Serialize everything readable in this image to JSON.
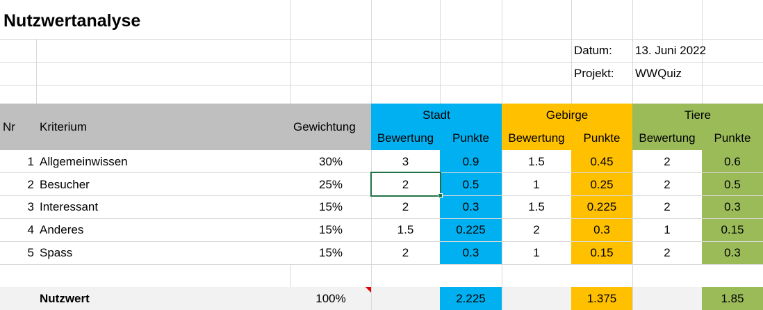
{
  "title": "Nutzwertanalyse",
  "meta": {
    "date_label": "Datum:",
    "date_value": "13. Juni 2022",
    "project_label": "Projekt:",
    "project_value": "WWQuiz"
  },
  "header": {
    "nr": "Nr",
    "criterion": "Kriterium",
    "weight": "Gewichtung",
    "groups": [
      "Stadt",
      "Gebirge",
      "Tiere"
    ],
    "rating": "Bewertung",
    "points": "Punkte"
  },
  "rows": [
    {
      "nr": "1",
      "criterion": "Allgemeinwissen",
      "weight": "30%",
      "stadt_rating": "3",
      "stadt_points": "0.9",
      "gebirge_rating": "1.5",
      "gebirge_points": "0.45",
      "tiere_rating": "2",
      "tiere_points": "0.6"
    },
    {
      "nr": "2",
      "criterion": "Besucher",
      "weight": "25%",
      "stadt_rating": "2",
      "stadt_points": "0.5",
      "gebirge_rating": "1",
      "gebirge_points": "0.25",
      "tiere_rating": "2",
      "tiere_points": "0.5"
    },
    {
      "nr": "3",
      "criterion": "Interessant",
      "weight": "15%",
      "stadt_rating": "2",
      "stadt_points": "0.3",
      "gebirge_rating": "1.5",
      "gebirge_points": "0.225",
      "tiere_rating": "2",
      "tiere_points": "0.3"
    },
    {
      "nr": "4",
      "criterion": "Anderes",
      "weight": "15%",
      "stadt_rating": "1.5",
      "stadt_points": "0.225",
      "gebirge_rating": "2",
      "gebirge_points": "0.3",
      "tiere_rating": "1",
      "tiere_points": "0.15"
    },
    {
      "nr": "5",
      "criterion": "Spass",
      "weight": "15%",
      "stadt_rating": "2",
      "stadt_points": "0.3",
      "gebirge_rating": "1",
      "gebirge_points": "0.15",
      "tiere_rating": "2",
      "tiere_points": "0.3"
    }
  ],
  "total": {
    "label": "Nutzwert",
    "weight": "100%",
    "stadt": "2.225",
    "gebirge": "1.375",
    "tiere": "1.85"
  },
  "colors": {
    "stadt": "#00b0f0",
    "gebirge": "#ffc000",
    "tiere": "#9bbb59",
    "header_gray": "#bfbfbf",
    "total_row": "#f2f2f2",
    "selection": "#217346"
  }
}
